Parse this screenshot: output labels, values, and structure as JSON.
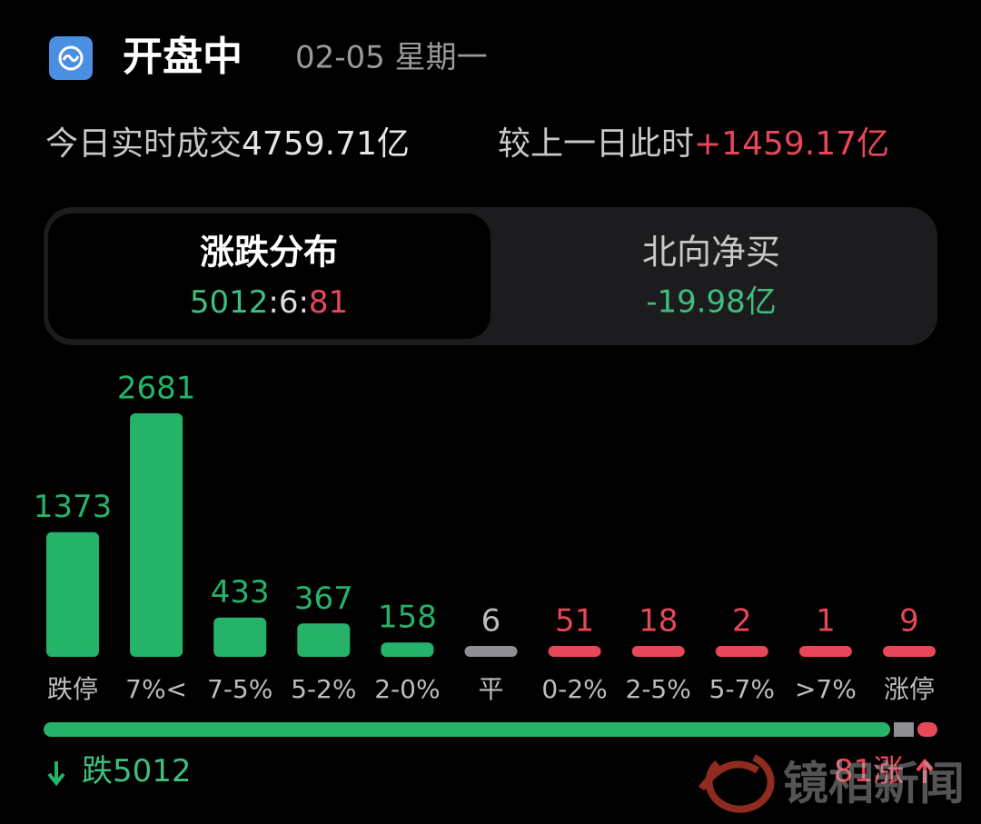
{
  "header": {
    "title": "开盘中",
    "date": "02-05 星期一"
  },
  "turnover": {
    "label": "今日实时成交",
    "value": "4759.71亿",
    "compare_label": "较上一日此时",
    "change": "+1459.17亿"
  },
  "tabs": [
    {
      "title": "涨跌分布"
    },
    {
      "title": "北向净买",
      "value": "-19.98亿"
    }
  ],
  "breadth": {
    "down_label": "跌",
    "down": 5012,
    "flat": 6,
    "up": 81,
    "up_label": "涨",
    "separator": ":",
    "colors": {
      "down": "#25b36a",
      "flat": "#8e8e93",
      "up": "#e8475a"
    }
  },
  "chart_data": {
    "type": "bar",
    "categories": [
      "跌停",
      "7%<",
      "7-5%",
      "5-2%",
      "2-0%",
      "平",
      "0-2%",
      "2-5%",
      "5-7%",
      ">7%",
      "涨停"
    ],
    "values": [
      1373,
      2681,
      433,
      367,
      158,
      6,
      51,
      18,
      2,
      1,
      9
    ],
    "colors": [
      "#25b36a",
      "#25b36a",
      "#25b36a",
      "#25b36a",
      "#25b36a",
      "#8e8e93",
      "#e8475a",
      "#e8475a",
      "#e8475a",
      "#e8475a",
      "#e8475a"
    ]
  },
  "watermark": "镜相新闻"
}
